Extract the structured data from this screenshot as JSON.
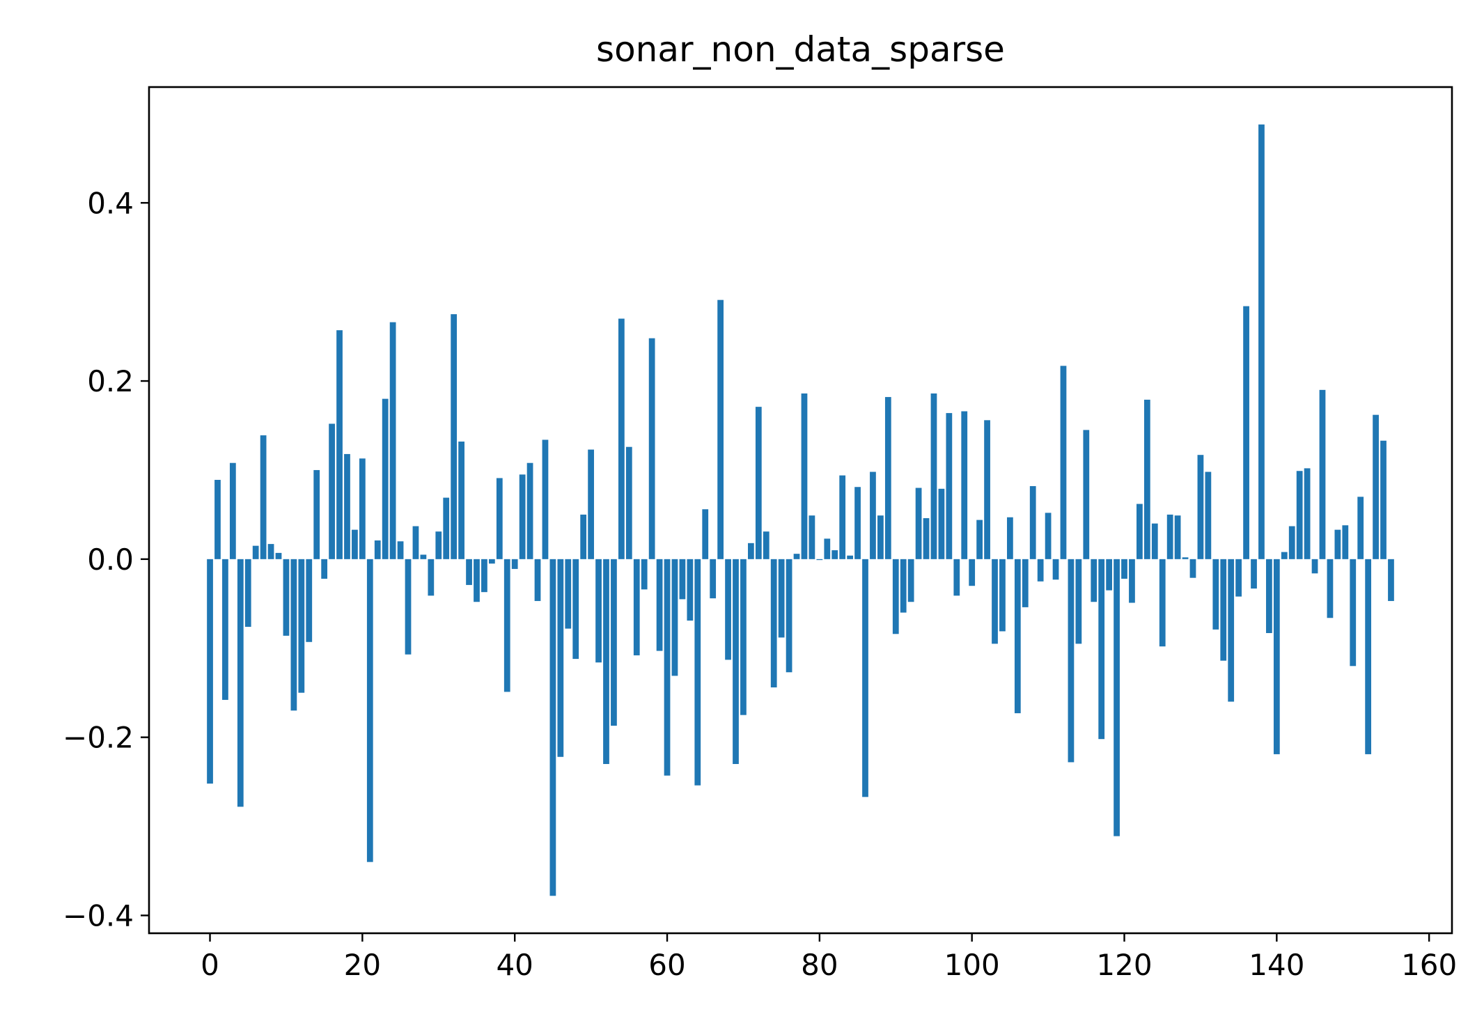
{
  "chart_data": {
    "type": "bar",
    "title": "sonar_non_data_sparse",
    "xlabel": "",
    "ylabel": "",
    "xlim": [
      -8,
      163
    ],
    "ylim": [
      -0.42,
      0.53
    ],
    "xticks": [
      0,
      20,
      40,
      60,
      80,
      100,
      120,
      140,
      160
    ],
    "xtick_labels": [
      "0",
      "20",
      "40",
      "60",
      "80",
      "100",
      "120",
      "140",
      "160"
    ],
    "yticks": [
      -0.4,
      -0.2,
      0.0,
      0.2,
      0.4
    ],
    "ytick_labels": [
      "−0.4",
      "−0.2",
      "0.0",
      "0.2",
      "0.4"
    ],
    "grid": false,
    "bar_color": "#1f77b4",
    "x": [
      0,
      1,
      2,
      3,
      4,
      5,
      6,
      7,
      8,
      9,
      10,
      11,
      12,
      13,
      14,
      15,
      16,
      17,
      18,
      19,
      20,
      21,
      22,
      23,
      24,
      25,
      26,
      27,
      28,
      29,
      30,
      31,
      32,
      33,
      34,
      35,
      36,
      37,
      38,
      39,
      40,
      41,
      42,
      43,
      44,
      45,
      46,
      47,
      48,
      49,
      50,
      51,
      52,
      53,
      54,
      55,
      56,
      57,
      58,
      59,
      60,
      61,
      62,
      63,
      64,
      65,
      66,
      67,
      68,
      69,
      70,
      71,
      72,
      73,
      74,
      75,
      76,
      77,
      78,
      79,
      80,
      81,
      82,
      83,
      84,
      85,
      86,
      87,
      88,
      89,
      90,
      91,
      92,
      93,
      94,
      95,
      96,
      97,
      98,
      99,
      100,
      101,
      102,
      103,
      104,
      105,
      106,
      107,
      108,
      109,
      110,
      111,
      112,
      113,
      114,
      115,
      116,
      117,
      118,
      119,
      120,
      121,
      122,
      123,
      124,
      125,
      126,
      127,
      128,
      129,
      130,
      131,
      132,
      133,
      134,
      135,
      136,
      137,
      138,
      139,
      140,
      141,
      142,
      143,
      144,
      145,
      146,
      147,
      148,
      149,
      150,
      151,
      152,
      153,
      154,
      155
    ],
    "values": [
      -0.252,
      0.089,
      -0.158,
      0.108,
      -0.278,
      -0.076,
      0.015,
      0.139,
      0.017,
      0.007,
      -0.086,
      -0.17,
      -0.15,
      -0.093,
      0.1,
      -0.022,
      0.152,
      0.257,
      0.118,
      0.033,
      0.113,
      -0.34,
      0.021,
      0.18,
      0.266,
      0.02,
      -0.107,
      0.037,
      0.005,
      -0.041,
      0.031,
      0.069,
      0.275,
      0.132,
      -0.029,
      -0.048,
      -0.037,
      -0.005,
      0.091,
      -0.149,
      -0.011,
      0.095,
      0.108,
      -0.047,
      0.134,
      -0.378,
      -0.222,
      -0.078,
      -0.112,
      0.05,
      0.123,
      -0.116,
      -0.23,
      -0.187,
      0.27,
      0.126,
      -0.108,
      -0.034,
      0.248,
      -0.103,
      -0.243,
      -0.131,
      -0.045,
      -0.069,
      -0.254,
      0.056,
      -0.044,
      0.291,
      -0.113,
      -0.23,
      -0.175,
      0.018,
      0.171,
      0.031,
      -0.144,
      -0.088,
      -0.127,
      0.006,
      0.186,
      0.049,
      -0.001,
      0.023,
      0.01,
      0.094,
      0.004,
      0.081,
      -0.267,
      0.098,
      0.049,
      0.182,
      -0.084,
      -0.06,
      -0.048,
      0.08,
      0.046,
      0.186,
      0.079,
      0.164,
      -0.041,
      0.166,
      -0.03,
      0.044,
      0.156,
      -0.095,
      -0.081,
      0.047,
      -0.173,
      -0.054,
      0.082,
      -0.025,
      0.052,
      -0.023,
      0.217,
      -0.228,
      -0.095,
      0.145,
      -0.048,
      -0.202,
      -0.035,
      -0.311,
      -0.022,
      -0.049,
      0.062,
      0.179,
      0.04,
      -0.098,
      0.05,
      0.049,
      0.002,
      -0.021,
      0.117,
      0.098,
      -0.079,
      -0.114,
      -0.16,
      -0.042,
      0.284,
      -0.033,
      0.488,
      -0.083,
      -0.219,
      0.008,
      0.037,
      0.099,
      0.102,
      -0.016,
      0.19,
      -0.066,
      0.033,
      0.038,
      -0.12,
      0.07,
      -0.219,
      0.162,
      0.133,
      -0.047
    ]
  }
}
